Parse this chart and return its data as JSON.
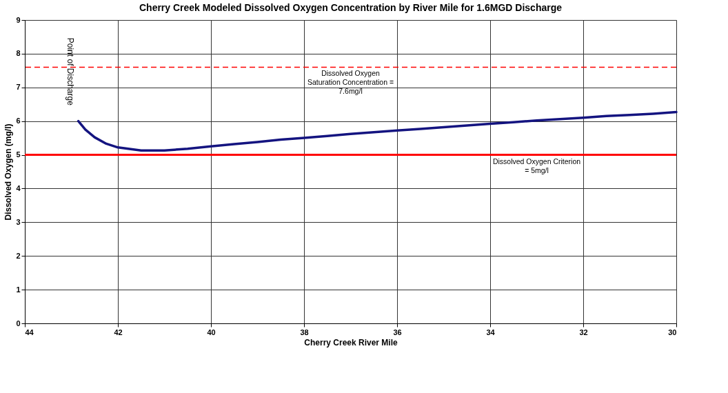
{
  "chart_data": {
    "type": "line",
    "title": "Cherry Creek Modeled Dissolved Oxygen Concentration by River Mile for 1.6MGD Discharge",
    "xlabel": "Cherry Creek River Mile",
    "ylabel": "Dissolved Oxygen (mg/l)",
    "x": [
      42.85,
      42.7,
      42.5,
      42.25,
      42.0,
      41.5,
      41.0,
      40.5,
      40.0,
      39.5,
      39.0,
      38.5,
      38.0,
      37.5,
      37.0,
      36.5,
      36.0,
      35.5,
      35.0,
      34.5,
      34.0,
      33.5,
      33.0,
      32.5,
      32.0,
      31.5,
      31.0,
      30.5,
      30.0
    ],
    "series": [
      {
        "color": "#141480",
        "values": [
          6.0,
          5.75,
          5.52,
          5.33,
          5.22,
          5.13,
          5.13,
          5.18,
          5.25,
          5.32,
          5.38,
          5.45,
          5.5,
          5.56,
          5.62,
          5.67,
          5.72,
          5.77,
          5.82,
          5.87,
          5.92,
          5.97,
          6.02,
          6.06,
          6.1,
          6.15,
          6.18,
          6.22,
          6.27
        ]
      }
    ],
    "xlim": [
      44,
      30
    ],
    "xticks": [
      44,
      42,
      40,
      38,
      36,
      34,
      32,
      30
    ],
    "ylim": [
      0,
      9
    ],
    "yticks": [
      0,
      1,
      2,
      3,
      4,
      5,
      6,
      7,
      8,
      9
    ],
    "grid": true,
    "marker": "none",
    "line_style": "solid",
    "ref_lines": [
      {
        "axis": "y",
        "value": 7.6,
        "label": "Dissolved Oxygen\nSaturation Concentration =\n7.6mg/l",
        "color": "#ff0000",
        "line_style": "dashed"
      },
      {
        "axis": "y",
        "value": 5,
        "label": "Dissolved Oxygen Criterion\n= 5mg/l",
        "color": "#ff0000",
        "line_style": "solid"
      }
    ],
    "annotations": [
      "Point of Discharge"
    ]
  }
}
